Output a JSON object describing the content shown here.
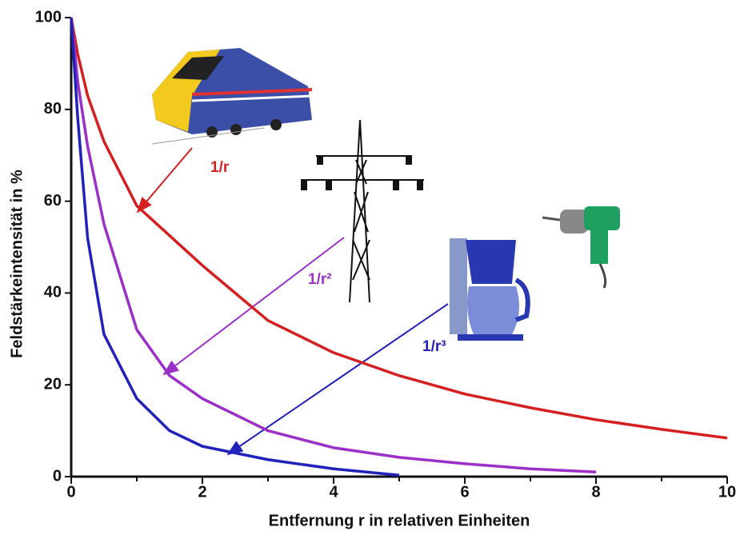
{
  "chart_data": {
    "type": "line",
    "xlabel": "Entfernung r in relativen Einheiten",
    "ylabel": "Feldstärkeintensität in %",
    "xlim": [
      0,
      10
    ],
    "xticks": [
      0,
      2,
      4,
      6,
      8,
      10
    ],
    "xminor": [
      1,
      3,
      5,
      7,
      9
    ],
    "ylim": [
      0,
      100
    ],
    "yticks": [
      0,
      20,
      40,
      60,
      80,
      100
    ],
    "series": [
      {
        "name": "1/r",
        "color": "#d42020",
        "x": [
          0,
          0.1,
          0.25,
          0.5,
          1,
          2,
          3,
          4,
          5,
          6,
          7,
          8,
          9,
          10
        ],
        "values": [
          100,
          92,
          83,
          73,
          59,
          46,
          34,
          27,
          22,
          18,
          15,
          12.4,
          10.3,
          8.4
        ]
      },
      {
        "name": "1/r²",
        "color": "#9b30c8",
        "x": [
          0,
          0.1,
          0.25,
          0.5,
          1,
          1.5,
          2,
          3,
          4,
          5,
          6,
          7,
          8
        ],
        "values": [
          100,
          86,
          72,
          55,
          32,
          22,
          17,
          10,
          6.3,
          4.2,
          2.8,
          1.7,
          1
        ]
      },
      {
        "name": "1/r³",
        "color": "#2222bb",
        "x": [
          0,
          0.1,
          0.25,
          0.5,
          1,
          1.5,
          2,
          3,
          4,
          5
        ],
        "values": [
          100,
          78,
          52,
          31,
          17,
          10,
          6.6,
          3.7,
          1.7,
          0.3
        ]
      }
    ]
  }
}
